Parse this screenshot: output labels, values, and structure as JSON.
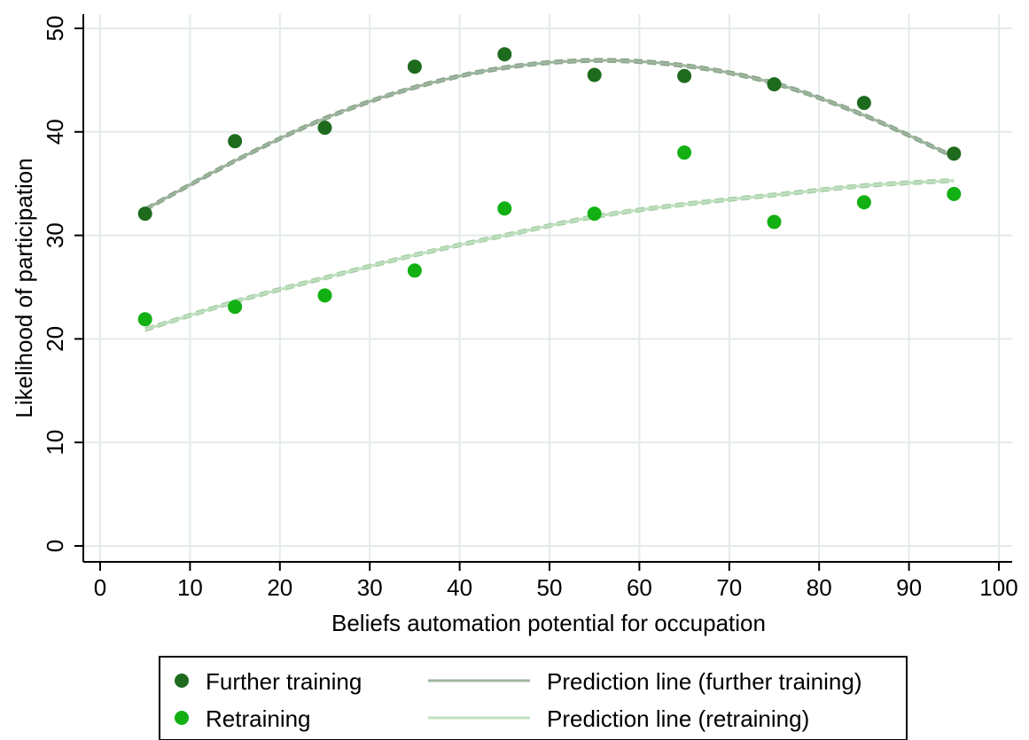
{
  "chart_data": {
    "type": "scatter",
    "xlabel": "Beliefs automation potential for occupation",
    "ylabel": "Likelihood of participation",
    "xlim": [
      0,
      100
    ],
    "ylim": [
      0,
      50
    ],
    "xticks": [
      "0",
      "10",
      "20",
      "30",
      "40",
      "50",
      "60",
      "70",
      "80",
      "90",
      "100"
    ],
    "yticks": [
      "0",
      "10",
      "20",
      "30",
      "40",
      "50"
    ],
    "grid": true,
    "legend_position": "bottom",
    "x": [
      5,
      15,
      25,
      35,
      45,
      55,
      65,
      75,
      85,
      95
    ],
    "series": [
      {
        "name": "Further training",
        "kind": "scatter",
        "color": "#1e6b1e",
        "values": [
          32.1,
          39.1,
          40.4,
          46.3,
          47.5,
          45.5,
          45.4,
          44.6,
          42.8,
          37.9
        ]
      },
      {
        "name": "Retraining",
        "kind": "scatter",
        "color": "#12b012",
        "values": [
          21.9,
          23.1,
          24.2,
          26.6,
          32.6,
          32.1,
          38.0,
          31.3,
          33.2,
          34.0
        ]
      },
      {
        "name": "Prediction line (further training)",
        "kind": "line",
        "color": "#9fb59f",
        "values": [
          32.5,
          37.2,
          41.3,
          44.3,
          46.2,
          46.9,
          46.4,
          44.7,
          41.6,
          37.6
        ]
      },
      {
        "name": "Prediction line (retraining)",
        "kind": "line",
        "color": "#bfe0bf",
        "values": [
          20.9,
          23.6,
          25.9,
          28.1,
          30.0,
          31.8,
          33.0,
          33.9,
          34.8,
          35.3
        ]
      }
    ]
  }
}
